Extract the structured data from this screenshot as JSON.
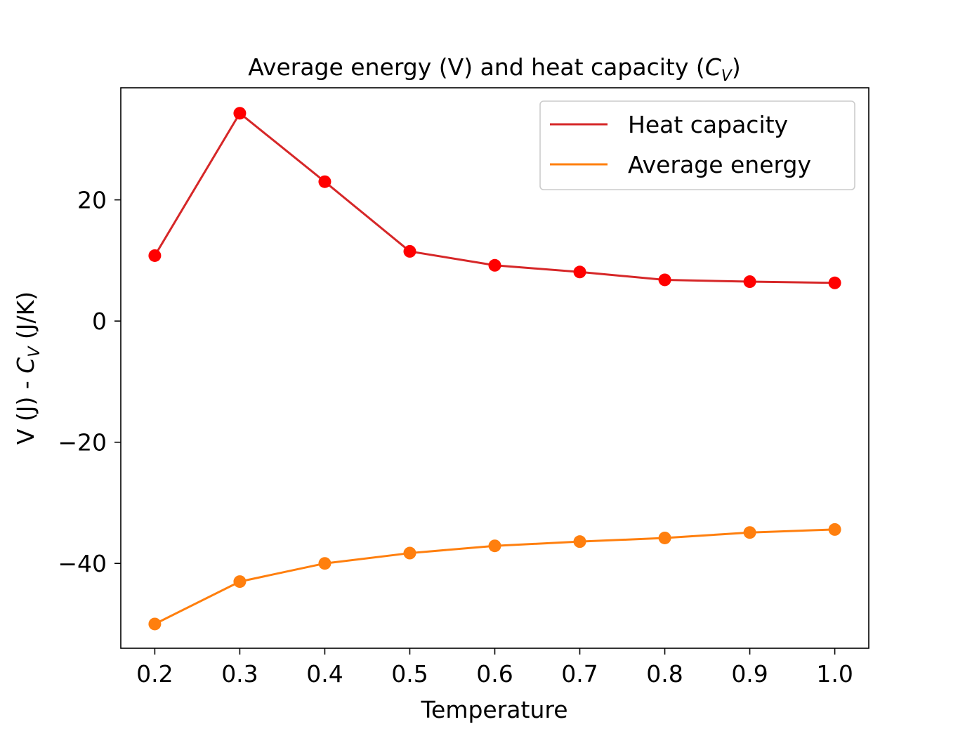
{
  "chart_data": {
    "type": "line",
    "title": {
      "pre": "Average energy (V) and heat capacity (",
      "sym": "C",
      "sub": "V",
      "post": ")"
    },
    "xlabel": "Temperature",
    "ylabel": {
      "pre": "V (J) - ",
      "sym": "C",
      "sub": "V",
      "post": " (J/K)"
    },
    "x": [
      0.2,
      0.3,
      0.4,
      0.5,
      0.6,
      0.7,
      0.8,
      0.9,
      1.0
    ],
    "xlim": [
      0.16,
      1.04
    ],
    "ylim": [
      -54.0,
      38.5
    ],
    "xticks": [
      0.2,
      0.3,
      0.4,
      0.5,
      0.6,
      0.7,
      0.8,
      0.9,
      1.0
    ],
    "xtick_labels": [
      "0.2",
      "0.3",
      "0.4",
      "0.5",
      "0.6",
      "0.7",
      "0.8",
      "0.9",
      "1.0"
    ],
    "yticks": [
      20,
      0,
      -20,
      -40
    ],
    "ytick_labels": [
      "20",
      "0",
      "−20",
      "−40"
    ],
    "grid": false,
    "legend_position": "top-right",
    "series": [
      {
        "name": "Heat capacity",
        "line_color": "#d62728",
        "marker_color": "#ff0000",
        "values": [
          10.8,
          34.3,
          23.0,
          11.5,
          9.2,
          8.1,
          6.8,
          6.5,
          6.3
        ]
      },
      {
        "name": "Average energy",
        "line_color": "#ff7f0e",
        "marker_color": "#ff7f0e",
        "values": [
          -50.0,
          -43.0,
          -40.0,
          -38.3,
          -37.1,
          -36.4,
          -35.8,
          -34.9,
          -34.4
        ]
      }
    ]
  }
}
